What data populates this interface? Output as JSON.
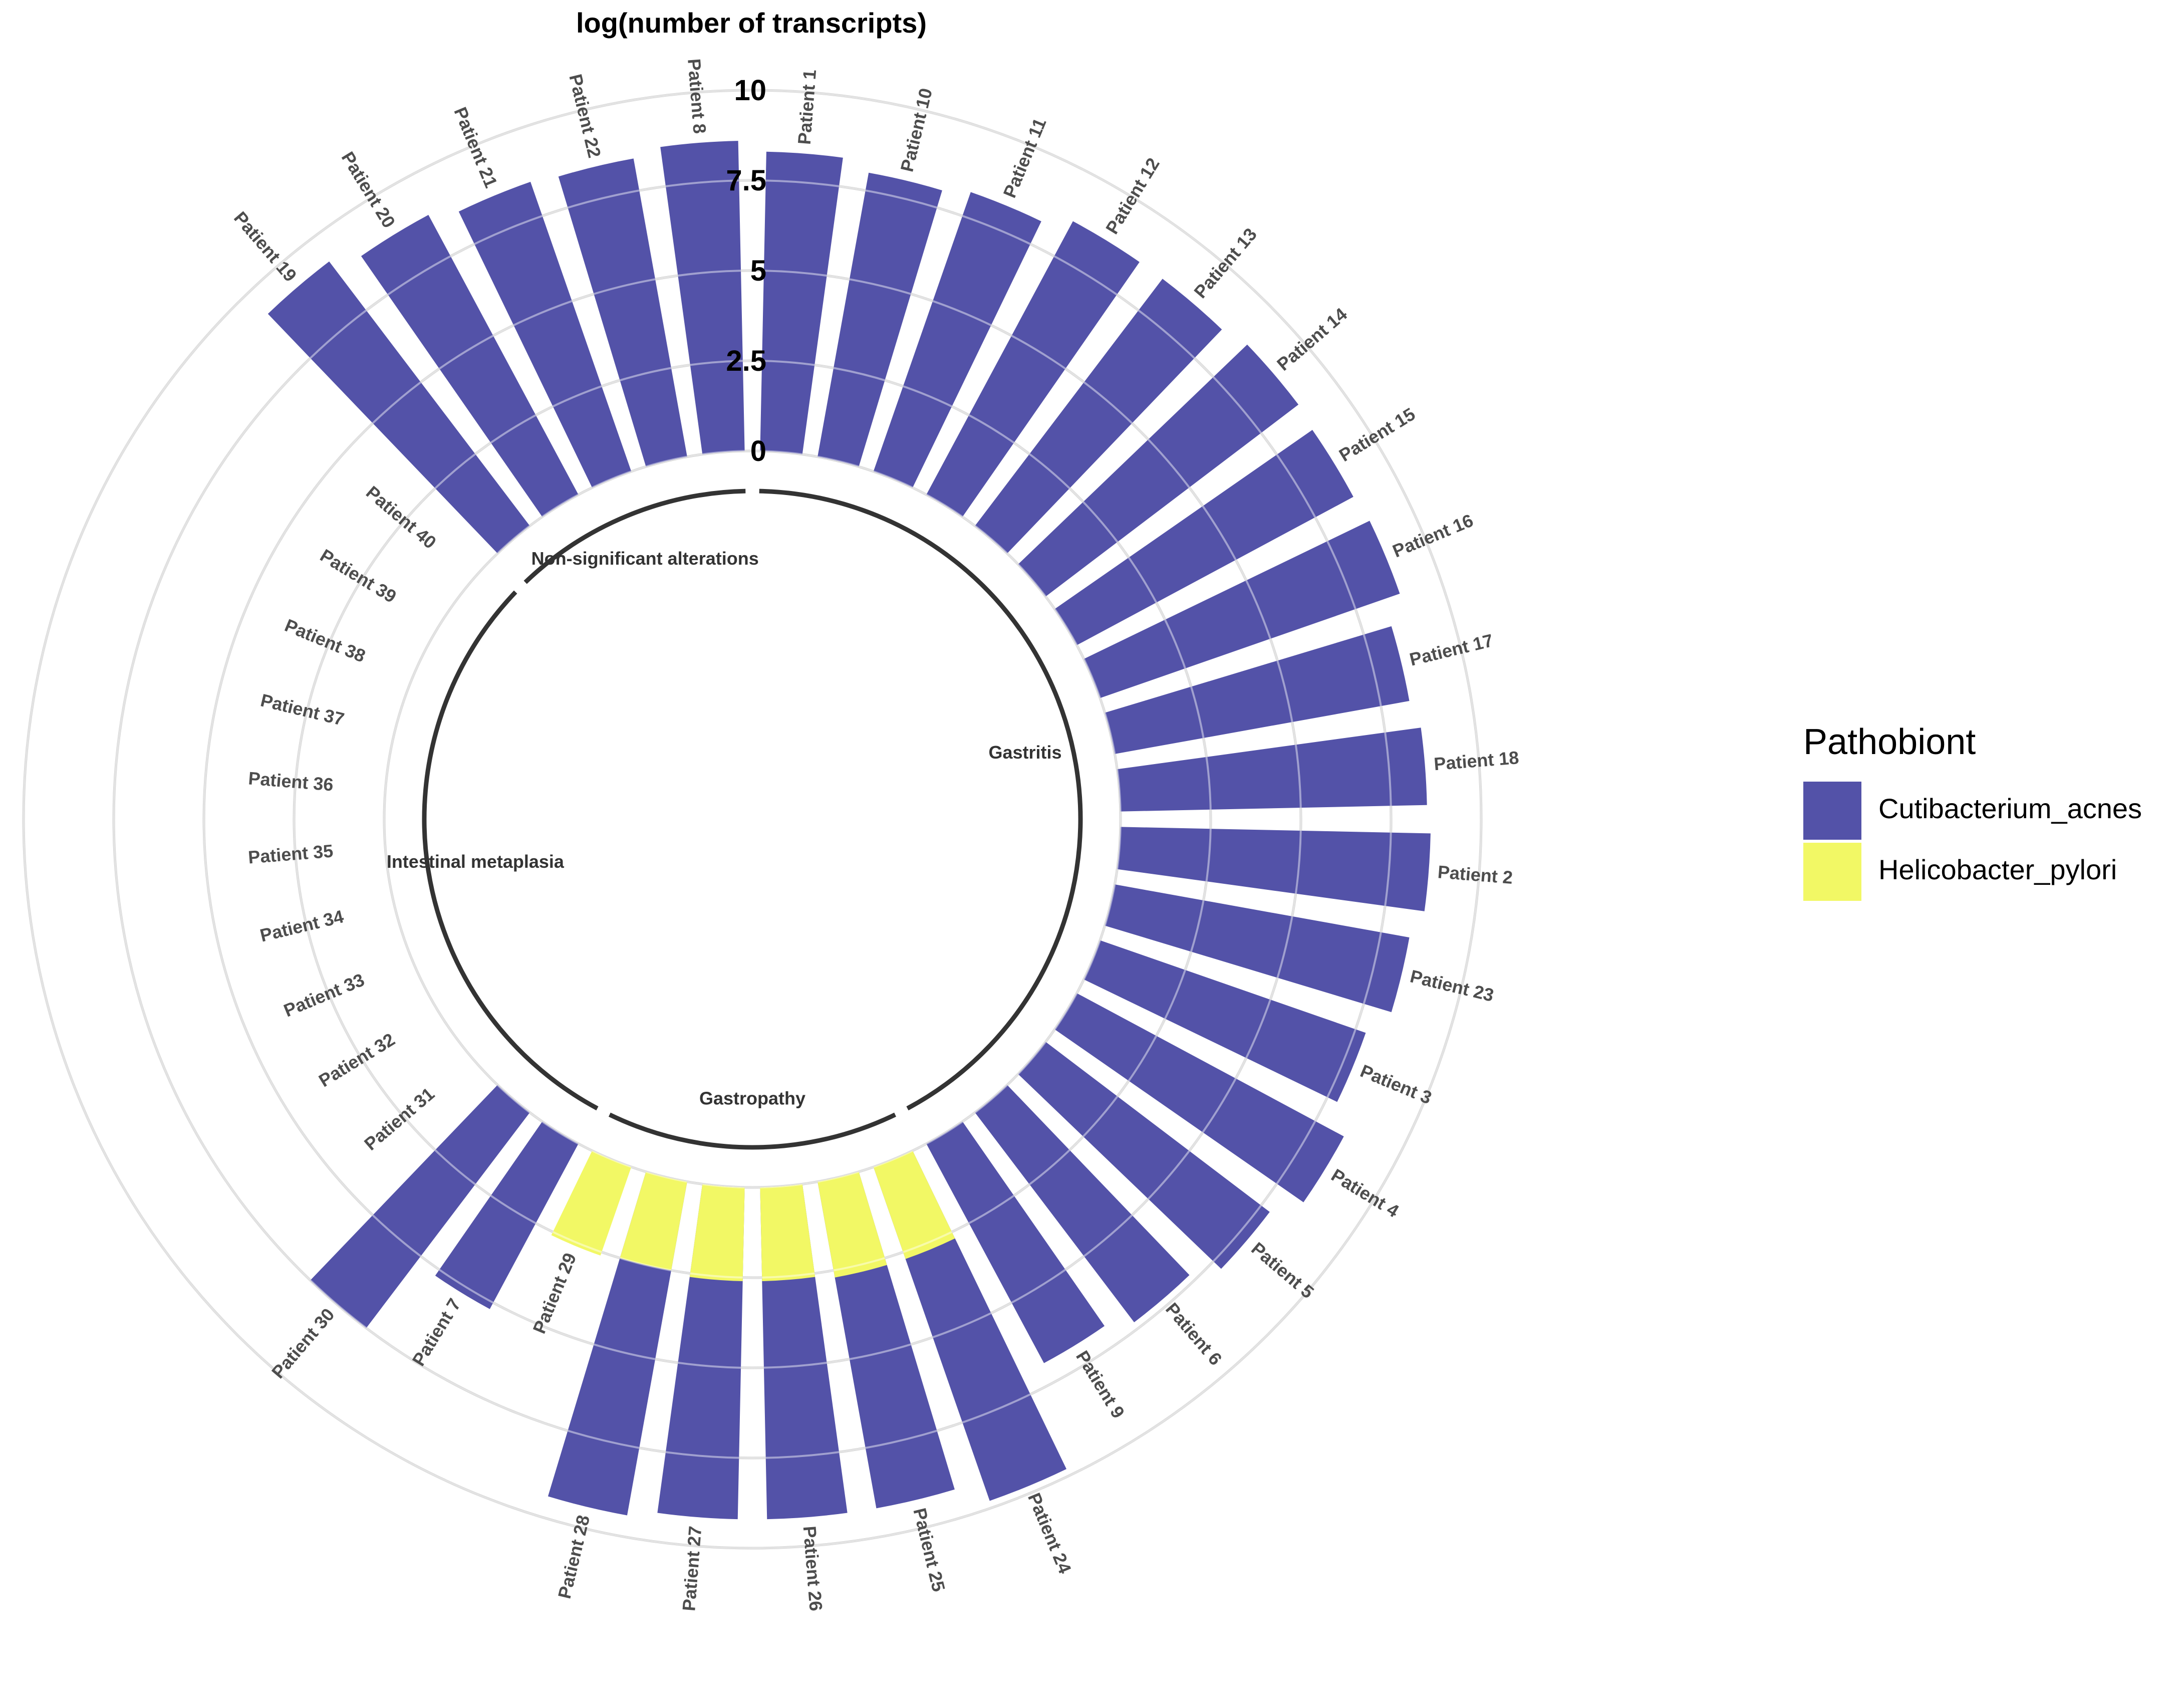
{
  "chart_data": {
    "type": "bar",
    "subtype": "circular",
    "title": "log(number of transcripts)",
    "ylim": [
      0,
      10
    ],
    "yticks": [
      "0",
      "2.5",
      "5",
      "7.5",
      "10"
    ],
    "legend": {
      "title": "Pathobiont",
      "position": "right",
      "entries": [
        {
          "key": "Cutibacterium_acnes",
          "label": "Cutibacterium_acnes",
          "color": "#5352A8"
        },
        {
          "key": "Helicobacter_pylori",
          "label": "Helicobacter_pylori",
          "color": "#F2F865"
        }
      ]
    },
    "bars": [
      {
        "patient": "Patient 1",
        "value": 8.3,
        "group": "Gastritis",
        "pathobiont": "Cutibacterium_acnes"
      },
      {
        "patient": "Patient 10",
        "value": 8.0,
        "group": "Gastritis",
        "pathobiont": "Cutibacterium_acnes"
      },
      {
        "patient": "Patient 11",
        "value": 8.2,
        "group": "Gastritis",
        "pathobiont": "Cutibacterium_acnes"
      },
      {
        "patient": "Patient 12",
        "value": 8.6,
        "group": "Gastritis",
        "pathobiont": "Cutibacterium_acnes"
      },
      {
        "patient": "Patient 13",
        "value": 8.6,
        "group": "Gastritis",
        "pathobiont": "Cutibacterium_acnes"
      },
      {
        "patient": "Patient 14",
        "value": 8.8,
        "group": "Gastritis",
        "pathobiont": "Cutibacterium_acnes"
      },
      {
        "patient": "Patient 15",
        "value": 8.7,
        "group": "Gastritis",
        "pathobiont": "Cutibacterium_acnes"
      },
      {
        "patient": "Patient 16",
        "value": 8.8,
        "group": "Gastritis",
        "pathobiont": "Cutibacterium_acnes"
      },
      {
        "patient": "Patient 17",
        "value": 8.3,
        "group": "Gastritis",
        "pathobiont": "Cutibacterium_acnes"
      },
      {
        "patient": "Patient 18",
        "value": 8.5,
        "group": "Gastritis",
        "pathobiont": "Cutibacterium_acnes"
      },
      {
        "patient": "Patient 2",
        "value": 8.6,
        "group": "Gastritis",
        "pathobiont": "Cutibacterium_acnes"
      },
      {
        "patient": "Patient 23",
        "value": 8.3,
        "group": "Gastritis",
        "pathobiont": "Cutibacterium_acnes"
      },
      {
        "patient": "Patient 3",
        "value": 7.8,
        "group": "Gastritis",
        "pathobiont": "Cutibacterium_acnes"
      },
      {
        "patient": "Patient 4",
        "value": 8.4,
        "group": "Gastritis",
        "pathobiont": "Cutibacterium_acnes"
      },
      {
        "patient": "Patient 5",
        "value": 7.8,
        "group": "Gastritis",
        "pathobiont": "Cutibacterium_acnes"
      },
      {
        "patient": "Patient 6",
        "value": 7.3,
        "group": "Gastritis",
        "pathobiont": "Cutibacterium_acnes"
      },
      {
        "patient": "Patient 9",
        "value": 6.9,
        "group": "Gastritis",
        "pathobiont": "Cutibacterium_acnes"
      },
      {
        "patient": "Patient 24",
        "value": 9.8,
        "group": "Gastropathy",
        "pathobiont": "Cutibacterium_acnes"
      },
      {
        "patient": "Patient 25",
        "value": 9.2,
        "group": "Gastropathy",
        "pathobiont": "Cutibacterium_acnes"
      },
      {
        "patient": "Patient 26",
        "value": 9.2,
        "group": "Gastropathy",
        "pathobiont": "Cutibacterium_acnes"
      },
      {
        "patient": "Patient 27",
        "value": 9.2,
        "group": "Gastropathy",
        "pathobiont": "Cutibacterium_acnes"
      },
      {
        "patient": "Patient 28",
        "value": 9.4,
        "group": "Gastropathy",
        "pathobiont": "Cutibacterium_acnes"
      },
      {
        "patient": "Patient 24",
        "value": 2.7,
        "group": "Gastropathy",
        "pathobiont": "Helicobacter_pylori"
      },
      {
        "patient": "Patient 25",
        "value": 2.7,
        "group": "Gastropathy",
        "pathobiont": "Helicobacter_pylori"
      },
      {
        "patient": "Patient 26",
        "value": 2.6,
        "group": "Gastropathy",
        "pathobiont": "Helicobacter_pylori"
      },
      {
        "patient": "Patient 27",
        "value": 2.6,
        "group": "Gastropathy",
        "pathobiont": "Helicobacter_pylori"
      },
      {
        "patient": "Patient 28",
        "value": 2.5,
        "group": "Gastropathy",
        "pathobiont": "Helicobacter_pylori"
      },
      {
        "patient": "Patient 29",
        "value": 2.6,
        "group": "Gastropathy",
        "pathobiont": "Helicobacter_pylori"
      },
      {
        "patient": "Patient 7",
        "value": 5.2,
        "group": "Intestinal metaplasia",
        "pathobiont": "Cutibacterium_acnes"
      },
      {
        "patient": "Patient 30",
        "value": 7.5,
        "group": "Intestinal metaplasia",
        "pathobiont": "Cutibacterium_acnes"
      },
      {
        "patient": "Patient 31",
        "value": 0,
        "group": "Intestinal metaplasia",
        "pathobiont": "Cutibacterium_acnes"
      },
      {
        "patient": "Patient 32",
        "value": 0,
        "group": "Intestinal metaplasia",
        "pathobiont": "Cutibacterium_acnes"
      },
      {
        "patient": "Patient 33",
        "value": 0,
        "group": "Intestinal metaplasia",
        "pathobiont": "Cutibacterium_acnes"
      },
      {
        "patient": "Patient 34",
        "value": 0,
        "group": "Intestinal metaplasia",
        "pathobiont": "Cutibacterium_acnes"
      },
      {
        "patient": "Patient 35",
        "value": 0,
        "group": "Intestinal metaplasia",
        "pathobiont": "Cutibacterium_acnes"
      },
      {
        "patient": "Patient 36",
        "value": 0,
        "group": "Intestinal metaplasia",
        "pathobiont": "Cutibacterium_acnes"
      },
      {
        "patient": "Patient 37",
        "value": 0,
        "group": "Intestinal metaplasia",
        "pathobiont": "Cutibacterium_acnes"
      },
      {
        "patient": "Patient 38",
        "value": 0,
        "group": "Intestinal metaplasia",
        "pathobiont": "Cutibacterium_acnes"
      },
      {
        "patient": "Patient 39",
        "value": 0,
        "group": "Intestinal metaplasia",
        "pathobiont": "Cutibacterium_acnes"
      },
      {
        "patient": "Patient 40",
        "value": 0,
        "group": "Intestinal metaplasia",
        "pathobiont": "Cutibacterium_acnes"
      },
      {
        "patient": "Patient 19",
        "value": 9.2,
        "group": "Non-significant alterations",
        "pathobiont": "Cutibacterium_acnes"
      },
      {
        "patient": "Patient 20",
        "value": 8.8,
        "group": "Non-significant alterations",
        "pathobiont": "Cutibacterium_acnes"
      },
      {
        "patient": "Patient 21",
        "value": 8.5,
        "group": "Non-significant alterations",
        "pathobiont": "Cutibacterium_acnes"
      },
      {
        "patient": "Patient 22",
        "value": 8.4,
        "group": "Non-significant alterations",
        "pathobiont": "Cutibacterium_acnes"
      },
      {
        "patient": "Patient 8",
        "value": 8.6,
        "group": "Non-significant alterations",
        "pathobiont": "Cutibacterium_acnes"
      }
    ],
    "groups": [
      {
        "name": "Gastritis"
      },
      {
        "name": "Gastropathy"
      },
      {
        "name": "Intestinal metaplasia"
      },
      {
        "name": "Non-significant alterations"
      }
    ]
  }
}
